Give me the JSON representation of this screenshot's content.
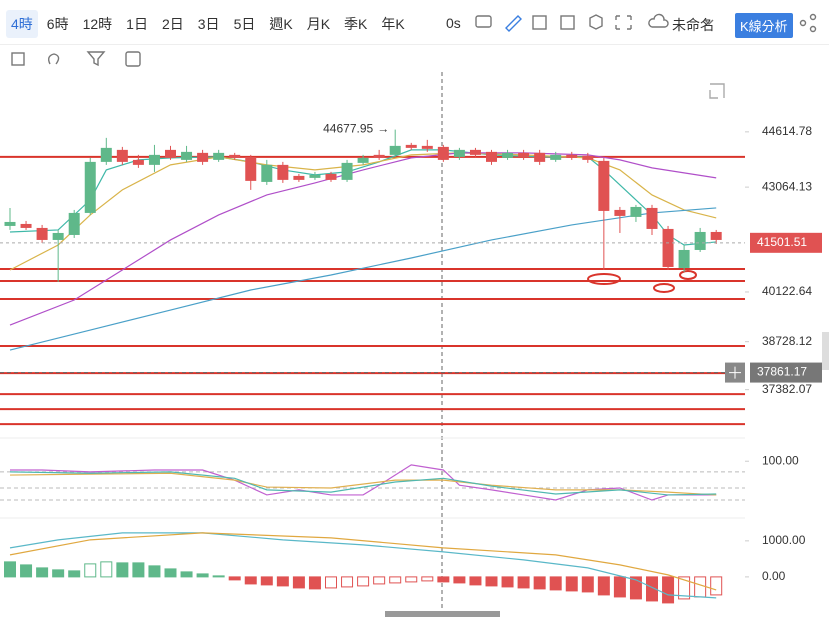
{
  "toolbar": {
    "intervals": [
      "4時",
      "6時",
      "12時",
      "1日",
      "2日",
      "3日",
      "5日",
      "週K",
      "月K",
      "季K",
      "年K"
    ],
    "timer": "0s",
    "layout_name": "未命名",
    "analysis_button": "K線分析"
  },
  "chart_data": [
    {
      "type": "candlestick",
      "ylim": [
        36250,
        46350
      ],
      "yticks": [
        44614.78,
        43064.13,
        40122.64,
        38728.12,
        37382.07
      ],
      "open": [
        41975,
        42031,
        41919,
        41582,
        41722,
        42340,
        43772,
        44109,
        43828,
        43688,
        44109,
        43828,
        44025,
        43828,
        43969,
        43912,
        43210,
        43688,
        43379,
        43323,
        43435,
        43267,
        43744,
        43969,
        43969,
        44249,
        44221,
        44193,
        43912,
        44109,
        44053,
        43884,
        44025,
        44025,
        43828,
        43969,
        43941,
        43800,
        42424,
        42228,
        42480,
        41891,
        40796,
        41301,
        41806
      ],
      "high": [
        42480,
        42115,
        42003,
        41863,
        42424,
        43884,
        44446,
        44193,
        43969,
        44249,
        44221,
        44221,
        44109,
        44109,
        44025,
        43969,
        43828,
        43772,
        43435,
        43491,
        43491,
        43828,
        43969,
        44109,
        44677.95,
        44306,
        44390,
        44249,
        44165,
        44165,
        44109,
        44109,
        44109,
        44109,
        44053,
        44053,
        44025,
        43884,
        42508,
        42565,
        42565,
        41975,
        41441,
        41919,
        41863
      ],
      "low": [
        41863,
        41863,
        41498,
        40402,
        41638,
        42284,
        43688,
        43688,
        43604,
        43491,
        43828,
        43772,
        43688,
        43772,
        43828,
        42986,
        43126,
        43182,
        43210,
        43267,
        43210,
        43210,
        43688,
        43828,
        43912,
        44109,
        44053,
        43772,
        43828,
        43884,
        43688,
        43828,
        43828,
        43688,
        43772,
        43828,
        43744,
        40739,
        41778,
        42087,
        41722,
        40739,
        40683,
        41245,
        41469
      ],
      "close": [
        42087,
        41919,
        41582,
        41778,
        42340,
        43772,
        44165,
        43772,
        43688,
        43969,
        43884,
        44053,
        43772,
        44025,
        43884,
        43239,
        43688,
        43267,
        43267,
        43407,
        43267,
        43744,
        43884,
        43884,
        44221,
        44165,
        44137,
        43828,
        44109,
        43969,
        43772,
        44025,
        43912,
        43772,
        43969,
        43884,
        43828,
        42396,
        42256,
        42508,
        41891,
        40824,
        41301,
        41806,
        41582
      ],
      "up_color": "#5fb88a",
      "down_color": "#e05252",
      "lines": [
        {
          "color": "#3fb8a8",
          "x": [
            0,
            3,
            5,
            6,
            8,
            10,
            13,
            15,
            17,
            19,
            21,
            23,
            25,
            27,
            30,
            33,
            36,
            37,
            38,
            39,
            40,
            41,
            42,
            44
          ],
          "values": [
            41806,
            41863,
            42705,
            43547,
            43828,
            43884,
            43912,
            43772,
            43547,
            43407,
            43491,
            43772,
            44109,
            44109,
            43969,
            43912,
            43912,
            43547,
            43126,
            42705,
            42284,
            41722,
            41441,
            41526
          ]
        },
        {
          "color": "#d9b44a",
          "x": [
            0,
            3,
            5,
            7,
            10,
            13,
            16,
            19,
            22,
            25,
            28,
            32,
            36,
            38,
            40,
            42,
            44
          ],
          "values": [
            40739,
            41441,
            42284,
            42986,
            43688,
            43912,
            43688,
            43547,
            43688,
            43969,
            44025,
            43969,
            43884,
            43547,
            42845,
            42424,
            42200
          ]
        },
        {
          "color": "#b04fc9",
          "x": [
            0,
            4,
            7,
            10,
            13,
            16,
            19,
            22,
            25,
            28,
            32,
            36,
            38,
            40,
            44
          ],
          "values": [
            39195,
            39897,
            40739,
            41582,
            42284,
            42845,
            43182,
            43547,
            43884,
            44025,
            44025,
            43969,
            43828,
            43604,
            43323
          ]
        },
        {
          "color": "#4aa0c8",
          "x": [
            0,
            5,
            10,
            15,
            20,
            25,
            30,
            35,
            40,
            44
          ],
          "values": [
            38493,
            39055,
            39616,
            40178,
            40599,
            41076,
            41582,
            42003,
            42340,
            42480
          ]
        }
      ],
      "levels": [
        43913,
        40768,
        40431,
        39925,
        38605,
        37847,
        37257,
        36836,
        36415
      ],
      "level_color": "#d9342b",
      "annotation": {
        "value": 44677.95,
        "arrow": "→"
      },
      "last_price": 41501.51,
      "crosshair_price": 37861.17
    },
    {
      "type": "oscillator",
      "ylim": [
        -10,
        120
      ],
      "yticks": [
        {
          "value": 100,
          "label": "100.00"
        }
      ],
      "levels": [
        77,
        42,
        16
      ],
      "lines": [
        {
          "color": "#c060d0",
          "x": [
            0,
            2,
            5,
            9,
            12,
            14,
            16,
            18,
            20,
            22,
            23,
            25,
            27,
            28,
            30,
            32,
            34,
            36,
            38,
            40,
            41,
            44
          ],
          "values": [
            81,
            81,
            77,
            81,
            81,
            59,
            27,
            38,
            27,
            27,
            48,
            92,
            81,
            48,
            38,
            27,
            16,
            38,
            42,
            16,
            27,
            27
          ]
        },
        {
          "color": "#e0b050",
          "x": [
            0,
            5,
            10,
            14,
            16,
            20,
            24,
            27,
            30,
            34,
            38,
            41,
            44
          ],
          "values": [
            70,
            72,
            74,
            59,
            44,
            42,
            59,
            59,
            48,
            38,
            38,
            33,
            27
          ]
        },
        {
          "color": "#50b8b0",
          "x": [
            0,
            5,
            10,
            14,
            16,
            20,
            24,
            27,
            30,
            34,
            38,
            41,
            44
          ],
          "values": [
            77,
            74,
            77,
            63,
            38,
            33,
            55,
            63,
            46,
            29,
            38,
            27,
            29
          ]
        }
      ]
    },
    {
      "type": "macd",
      "ylim": [
        -780,
        1440
      ],
      "yticks": [
        {
          "value": 1000,
          "label": "1000.00"
        },
        {
          "value": 0,
          "label": "0.00"
        }
      ],
      "values": [
        417,
        333,
        250,
        195,
        167,
        361,
        417,
        389,
        389,
        306,
        222,
        139,
        83,
        28,
        -83,
        -195,
        -222,
        -250,
        -306,
        -333,
        -306,
        -278,
        -250,
        -195,
        -167,
        -139,
        -111,
        -139,
        -167,
        -222,
        -250,
        -278,
        -306,
        -333,
        -361,
        -389,
        -417,
        -500,
        -556,
        -611,
        -667,
        -722,
        -611,
        -556,
        -500
      ],
      "up_color": "#5fb88a",
      "down_color": "#e05252",
      "lines": [
        {
          "color": "#5ab8c8",
          "x": [
            0,
            3,
            7,
            12,
            17,
            22,
            27,
            32,
            36,
            39,
            41,
            44
          ],
          "values": [
            806,
            1028,
            1222,
            1222,
            1028,
            889,
            694,
            472,
            250,
            -83,
            -500,
            -583
          ]
        },
        {
          "color": "#e0a840",
          "x": [
            0,
            5,
            12,
            20,
            27,
            34,
            38,
            41,
            44
          ],
          "values": [
            611,
            1028,
            1222,
            1083,
            806,
            611,
            333,
            56,
            -361
          ]
        }
      ]
    }
  ]
}
